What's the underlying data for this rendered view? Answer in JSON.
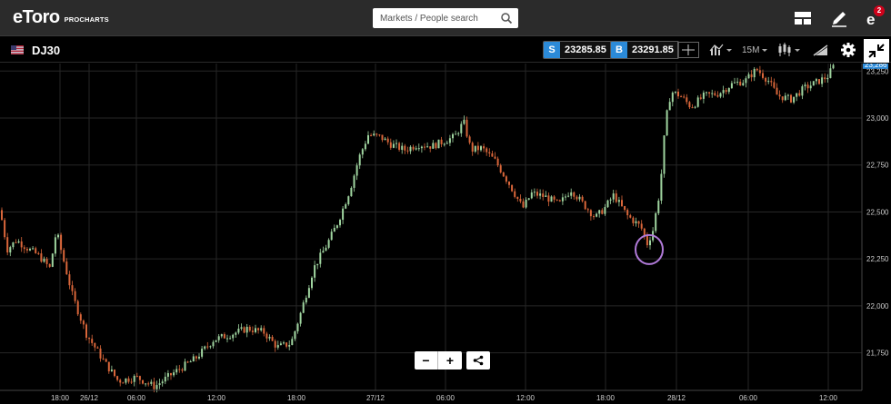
{
  "nav": {
    "logo_text": "eToro",
    "logo_sub": "PROCHARTS",
    "search_placeholder": "Markets / People search",
    "notification_count": "2",
    "icons": [
      "layout-icon",
      "pencil-icon",
      "etoro-e-icon"
    ]
  },
  "instrument": {
    "symbol": "DJ30",
    "sell_tag": "S",
    "sell_price": "23285.85",
    "buy_tag": "B",
    "buy_price": "23291.85",
    "timeframe": "15M",
    "tag_color": "#2b8ad8"
  },
  "zoom": {
    "out": "−",
    "in": "+",
    "share": "share-icon"
  },
  "chart_data": {
    "type": "candlestick",
    "ylim": [
      21550,
      23290
    ],
    "y_ticks": [
      21750,
      22000,
      22250,
      22500,
      22750,
      23000,
      23250
    ],
    "y_tick_labels": [
      "21,750",
      "22,000",
      "22,250",
      "22,500",
      "22,750",
      "23,000",
      "23,250"
    ],
    "x_tick_labels": [
      "18:00",
      "26/12",
      "06:00",
      "12:00",
      "18:00",
      "27/12",
      "06:00",
      "12:00",
      "18:00",
      "28/12",
      "06:00",
      "12:00"
    ],
    "last_price_label": "23,286",
    "last_price": 23286,
    "up_color": "#9fd49f",
    "down_color": "#d9663a",
    "grid": true,
    "annotation": {
      "type": "circle",
      "target_price": 22300,
      "color": "#b07ad8"
    },
    "close_path": [
      [
        0,
        22510
      ],
      [
        8,
        22300
      ],
      [
        18,
        22350
      ],
      [
        32,
        22300
      ],
      [
        42,
        22270
      ],
      [
        55,
        22200
      ],
      [
        62,
        22400
      ],
      [
        68,
        22280
      ],
      [
        80,
        22050
      ],
      [
        95,
        21850
      ],
      [
        115,
        21700
      ],
      [
        130,
        21600
      ],
      [
        150,
        21620
      ],
      [
        170,
        21570
      ],
      [
        190,
        21640
      ],
      [
        215,
        21720
      ],
      [
        235,
        21820
      ],
      [
        255,
        21850
      ],
      [
        272,
        21880
      ],
      [
        290,
        21860
      ],
      [
        305,
        21780
      ],
      [
        320,
        21800
      ],
      [
        330,
        21950
      ],
      [
        345,
        22200
      ],
      [
        360,
        22330
      ],
      [
        372,
        22450
      ],
      [
        385,
        22620
      ],
      [
        395,
        22790
      ],
      [
        405,
        22910
      ],
      [
        418,
        22900
      ],
      [
        430,
        22860
      ],
      [
        445,
        22830
      ],
      [
        460,
        22860
      ],
      [
        475,
        22850
      ],
      [
        490,
        22880
      ],
      [
        500,
        22900
      ],
      [
        510,
        22980
      ],
      [
        518,
        22830
      ],
      [
        530,
        22840
      ],
      [
        545,
        22770
      ],
      [
        560,
        22650
      ],
      [
        575,
        22520
      ],
      [
        585,
        22600
      ],
      [
        600,
        22580
      ],
      [
        615,
        22540
      ],
      [
        628,
        22620
      ],
      [
        640,
        22550
      ],
      [
        655,
        22470
      ],
      [
        665,
        22520
      ],
      [
        675,
        22590
      ],
      [
        690,
        22480
      ],
      [
        705,
        22420
      ],
      [
        712,
        22330
      ],
      [
        718,
        22400
      ],
      [
        726,
        22620
      ],
      [
        732,
        22980
      ],
      [
        738,
        23140
      ],
      [
        748,
        23120
      ],
      [
        760,
        23060
      ],
      [
        775,
        23120
      ],
      [
        790,
        23130
      ],
      [
        805,
        23180
      ],
      [
        820,
        23200
      ],
      [
        832,
        23260
      ],
      [
        845,
        23200
      ],
      [
        855,
        23120
      ],
      [
        870,
        23100
      ],
      [
        885,
        23160
      ],
      [
        898,
        23190
      ],
      [
        910,
        23220
      ],
      [
        918,
        23285
      ]
    ]
  }
}
